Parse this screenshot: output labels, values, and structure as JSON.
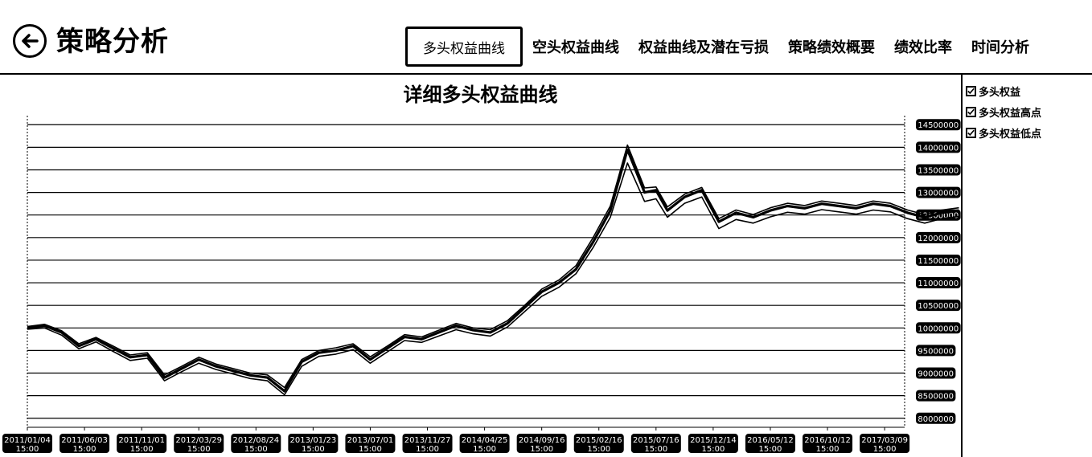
{
  "header": {
    "title": "策略分析",
    "tabs": [
      {
        "label": "多头权益曲线",
        "active": true
      },
      {
        "label": "空头权益曲线",
        "active": false
      },
      {
        "label": "权益曲线及潜在亏损",
        "active": false
      },
      {
        "label": "策略绩效概要",
        "active": false
      },
      {
        "label": "绩效比率",
        "active": false
      },
      {
        "label": "时间分析",
        "active": false
      }
    ]
  },
  "legend": {
    "items": [
      {
        "label": "多头权益",
        "checked": true
      },
      {
        "label": "多头权益高点",
        "checked": true
      },
      {
        "label": "多头权益低点",
        "checked": true
      }
    ]
  },
  "colors": {
    "background": "#ffffff",
    "line": "#000000",
    "label_bg": "#000000",
    "label_text": "#ffffff"
  },
  "chart_data": {
    "type": "line",
    "title": "详细多头权益曲线",
    "ylim": [
      7800000,
      14700000
    ],
    "y_ticks": [
      8000000,
      8500000,
      9000000,
      9500000,
      10000000,
      10500000,
      11000000,
      11500000,
      12000000,
      12500000,
      13000000,
      13500000,
      14000000,
      14500000
    ],
    "x_tick_labels": [
      [
        "2011/01/04",
        "15:00"
      ],
      [
        "2011/06/03",
        "15:00"
      ],
      [
        "2011/11/01",
        "15:00"
      ],
      [
        "2012/03/29",
        "15:00"
      ],
      [
        "2012/08/24",
        "15:00"
      ],
      [
        "2013/01/23",
        "15:00"
      ],
      [
        "2013/07/01",
        "15:00"
      ],
      [
        "2013/11/27",
        "15:00"
      ],
      [
        "2014/04/25",
        "15:00"
      ],
      [
        "2014/09/16",
        "15:00"
      ],
      [
        "2015/02/16",
        "15:00"
      ],
      [
        "2015/07/16",
        "15:00"
      ],
      [
        "2015/12/14",
        "15:00"
      ],
      [
        "2016/05/12",
        "15:00"
      ],
      [
        "2016/10/12",
        "15:00"
      ],
      [
        "2017/03/09",
        "15:00"
      ]
    ],
    "grid": true,
    "legend_position": "right",
    "series": [
      {
        "name": "多头权益",
        "x": [
          0,
          0.3,
          0.6,
          0.9,
          1.2,
          1.5,
          1.8,
          2.1,
          2.4,
          2.7,
          3.0,
          3.3,
          3.6,
          3.9,
          4.2,
          4.5,
          4.8,
          5.1,
          5.4,
          5.7,
          6.0,
          6.3,
          6.6,
          6.9,
          7.2,
          7.5,
          7.8,
          8.1,
          8.4,
          8.7,
          9.0,
          9.3,
          9.6,
          9.9,
          10.2,
          10.5,
          10.8,
          11.0,
          11.2,
          11.5,
          11.8,
          12.1,
          12.4,
          12.7,
          13.0,
          13.3,
          13.6,
          13.9,
          14.2,
          14.5,
          14.8,
          15.1,
          15.4,
          15.7,
          16.0,
          16.3
        ],
        "values": [
          10000000,
          10050000,
          9900000,
          9600000,
          9750000,
          9550000,
          9350000,
          9400000,
          8900000,
          9100000,
          9300000,
          9150000,
          9050000,
          8950000,
          8900000,
          8600000,
          9250000,
          9450000,
          9500000,
          9600000,
          9300000,
          9550000,
          9800000,
          9750000,
          9900000,
          10050000,
          9950000,
          9900000,
          10100000,
          10450000,
          10800000,
          11000000,
          11300000,
          11900000,
          12600000,
          13950000,
          13000000,
          13050000,
          12600000,
          12900000,
          13050000,
          12350000,
          12550000,
          12450000,
          12600000,
          12700000,
          12650000,
          12750000,
          12700000,
          12650000,
          12750000,
          12700000,
          12550000,
          12450000,
          12550000,
          12600000
        ]
      },
      {
        "name": "多头权益高点",
        "x": [
          0,
          0.3,
          0.6,
          0.9,
          1.2,
          1.5,
          1.8,
          2.1,
          2.4,
          2.7,
          3.0,
          3.3,
          3.6,
          3.9,
          4.2,
          4.5,
          4.8,
          5.1,
          5.4,
          5.7,
          6.0,
          6.3,
          6.6,
          6.9,
          7.2,
          7.5,
          7.8,
          8.1,
          8.4,
          8.7,
          9.0,
          9.3,
          9.6,
          9.9,
          10.2,
          10.5,
          10.8,
          11.0,
          11.2,
          11.5,
          11.8,
          12.1,
          12.4,
          12.7,
          13.0,
          13.3,
          13.6,
          13.9,
          14.2,
          14.5,
          14.8,
          15.1,
          15.4,
          15.7,
          16.0,
          16.3
        ],
        "values": [
          10030000,
          10080000,
          9940000,
          9650000,
          9790000,
          9600000,
          9400000,
          9450000,
          8960000,
          9150000,
          9350000,
          9200000,
          9100000,
          9000000,
          8960000,
          8680000,
          9300000,
          9500000,
          9560000,
          9650000,
          9360000,
          9600000,
          9850000,
          9800000,
          9950000,
          10100000,
          10000000,
          9960000,
          10160000,
          10500000,
          10860000,
          11060000,
          11380000,
          12000000,
          12700000,
          14050000,
          13100000,
          13120000,
          12680000,
          12960000,
          13110000,
          12420000,
          12610000,
          12510000,
          12660000,
          12760000,
          12710000,
          12810000,
          12760000,
          12710000,
          12810000,
          12760000,
          12610000,
          12510000,
          12610000,
          12660000
        ]
      },
      {
        "name": "多头权益低点",
        "x": [
          0,
          0.3,
          0.6,
          0.9,
          1.2,
          1.5,
          1.8,
          2.1,
          2.4,
          2.7,
          3.0,
          3.3,
          3.6,
          3.9,
          4.2,
          4.5,
          4.8,
          5.1,
          5.4,
          5.7,
          6.0,
          6.3,
          6.6,
          6.9,
          7.2,
          7.5,
          7.8,
          8.1,
          8.4,
          8.7,
          9.0,
          9.3,
          9.6,
          9.9,
          10.2,
          10.5,
          10.8,
          11.0,
          11.2,
          11.5,
          11.8,
          12.1,
          12.4,
          12.7,
          13.0,
          13.3,
          13.6,
          13.9,
          14.2,
          14.5,
          14.8,
          15.1,
          15.4,
          15.7,
          16.0,
          16.3
        ],
        "values": [
          9970000,
          10000000,
          9840000,
          9540000,
          9690000,
          9480000,
          9280000,
          9330000,
          8830000,
          9030000,
          9220000,
          9080000,
          8980000,
          8880000,
          8830000,
          8520000,
          9150000,
          9370000,
          9420000,
          9520000,
          9220000,
          9470000,
          9720000,
          9680000,
          9820000,
          9960000,
          9870000,
          9820000,
          10020000,
          10360000,
          10700000,
          10900000,
          11200000,
          11780000,
          12450000,
          13650000,
          12800000,
          12860000,
          12450000,
          12760000,
          12900000,
          12200000,
          12400000,
          12320000,
          12460000,
          12560000,
          12520000,
          12620000,
          12570000,
          12520000,
          12610000,
          12570000,
          12420000,
          12320000,
          12420000,
          12470000
        ]
      }
    ]
  }
}
